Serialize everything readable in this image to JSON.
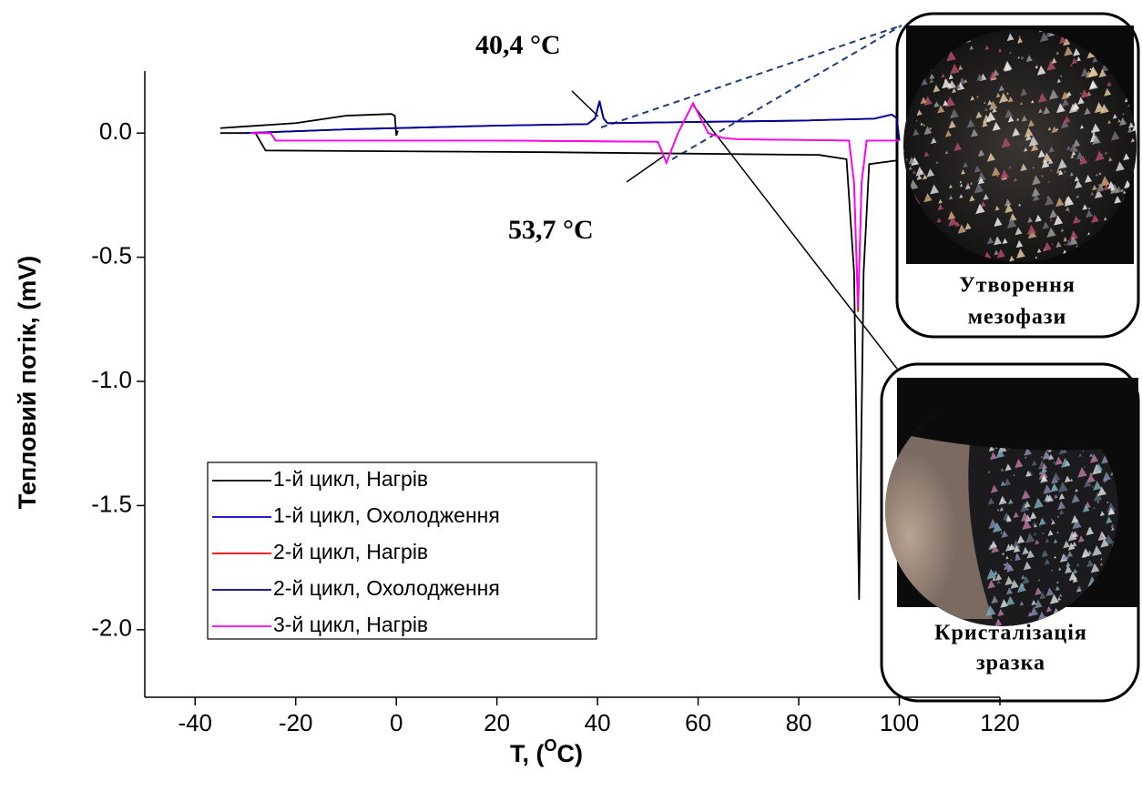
{
  "chart_data": {
    "type": "line",
    "ylabel": "Тепловий потік, (mV)",
    "xlabel": [
      "T, (",
      "O",
      "C)"
    ],
    "xlim": [
      -50,
      120
    ],
    "xticks": [
      -40,
      -20,
      0,
      20,
      40,
      60,
      80,
      100,
      120
    ],
    "ylim": [
      -2.25,
      0.25
    ],
    "yticks": [
      {
        "value": 0,
        "label": "0.0"
      },
      -0.5,
      {
        "value": -1,
        "label": "-1.0"
      },
      -1.5,
      {
        "value": -2,
        "label": "-2.0"
      }
    ],
    "series": [
      {
        "name": "1-й цикл, Нагрів",
        "color": "#000000",
        "x": [
          -35,
          -20,
          -10,
          -1,
          -0.3,
          0,
          0.3,
          null,
          -35,
          -28,
          -26,
          30,
          84,
          89.5,
          91,
          92,
          92.9,
          94,
          99.5
        ],
        "values": [
          0.02,
          0.04,
          0.07,
          0.077,
          0.07,
          -0.01,
          0.01,
          null,
          0.0,
          0.0,
          -0.07,
          -0.077,
          -0.088,
          -0.105,
          -0.56,
          -1.88,
          -0.56,
          -0.125,
          -0.11
        ]
      },
      {
        "name": "1-й цикл, Охолодження",
        "color": "#0000cc",
        "x": [
          -30,
          -10,
          20,
          38,
          39.5,
          40.4,
          41.2,
          42,
          60,
          80,
          95,
          98.5,
          99.5,
          100
        ],
        "values": [
          0.0,
          0.015,
          0.03,
          0.036,
          0.06,
          0.13,
          0.06,
          0.04,
          0.045,
          0.05,
          0.058,
          0.075,
          0.06,
          -0.03
        ]
      },
      {
        "name": "2-й цикл, Нагрів",
        "color": "#ff0000",
        "x": [
          -29,
          -25,
          -24,
          20,
          52,
          53.7,
          56,
          59,
          62,
          65,
          68,
          90,
          91,
          91.8,
          92.5,
          93.5,
          100
        ],
        "values": [
          0.0,
          0.0,
          -0.03,
          -0.03,
          -0.035,
          -0.12,
          0.0,
          0.12,
          0.0,
          -0.02,
          -0.025,
          -0.03,
          -0.2,
          -0.72,
          -0.2,
          -0.03,
          -0.03
        ]
      },
      {
        "name": "2-й цикл, Охолодження",
        "color": "#00008b",
        "x": [
          -30,
          -10,
          20,
          38,
          39.5,
          40.4,
          41.2,
          42,
          60,
          80,
          95,
          98.5,
          99.5,
          100
        ],
        "values": [
          0.0,
          0.015,
          0.03,
          0.036,
          0.058,
          0.125,
          0.058,
          0.04,
          0.045,
          0.05,
          0.058,
          0.074,
          0.06,
          -0.03
        ]
      },
      {
        "name": "3-й цикл, Нагрів",
        "color": "#ff00ff",
        "x": [
          -29,
          -25,
          -24,
          20,
          52,
          53.7,
          56,
          59,
          62,
          65,
          68,
          90,
          91,
          91.8,
          92.5,
          93.5,
          100
        ],
        "values": [
          0.0,
          0.0,
          -0.03,
          -0.03,
          -0.035,
          -0.12,
          0.0,
          0.12,
          0.0,
          -0.02,
          -0.025,
          -0.03,
          -0.2,
          -0.7,
          -0.2,
          -0.03,
          -0.03
        ]
      }
    ],
    "annotations": [
      "40,4 °C",
      "53,7 °C"
    ],
    "insets": [
      [
        "Утворення",
        "мезофази"
      ],
      [
        "Кристалізація",
        "зразка"
      ]
    ]
  }
}
